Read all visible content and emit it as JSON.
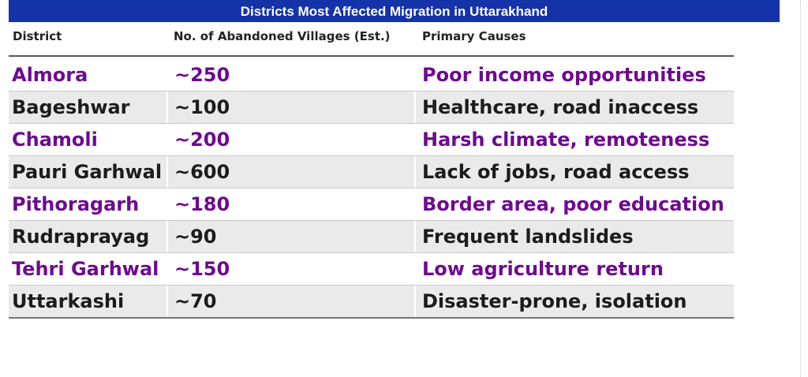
{
  "title": "Districts Most Affected Migration in Uttarakhand",
  "columns": {
    "district": "District",
    "villages": "No. of Abandoned Villages (Est.)",
    "causes": "Primary Causes"
  },
  "colors": {
    "title_bg": "#1433a8",
    "highlight_text": "#6d0b8e",
    "normal_text": "#1c1c1c",
    "alt_row_bg": "#eaeaea"
  },
  "rows": [
    {
      "district": "Almora",
      "villages": "~250",
      "causes": "Poor income opportunities"
    },
    {
      "district": "Bageshwar",
      "villages": "~100",
      "causes": "Healthcare, road inaccess"
    },
    {
      "district": "Chamoli",
      "villages": "~200",
      "causes": "Harsh climate, remoteness"
    },
    {
      "district": "Pauri Garhwal",
      "villages": "~600",
      "causes": "Lack of jobs, road access"
    },
    {
      "district": "Pithoragarh",
      "villages": "~180",
      "causes": "Border area, poor education"
    },
    {
      "district": "Rudraprayag",
      "villages": "~90",
      "causes": "Frequent landslides"
    },
    {
      "district": "Tehri Garhwal",
      "villages": "~150",
      "causes": "Low agriculture return"
    },
    {
      "district": "Uttarkashi",
      "villages": "~70",
      "causes": "Disaster-prone, isolation"
    }
  ]
}
